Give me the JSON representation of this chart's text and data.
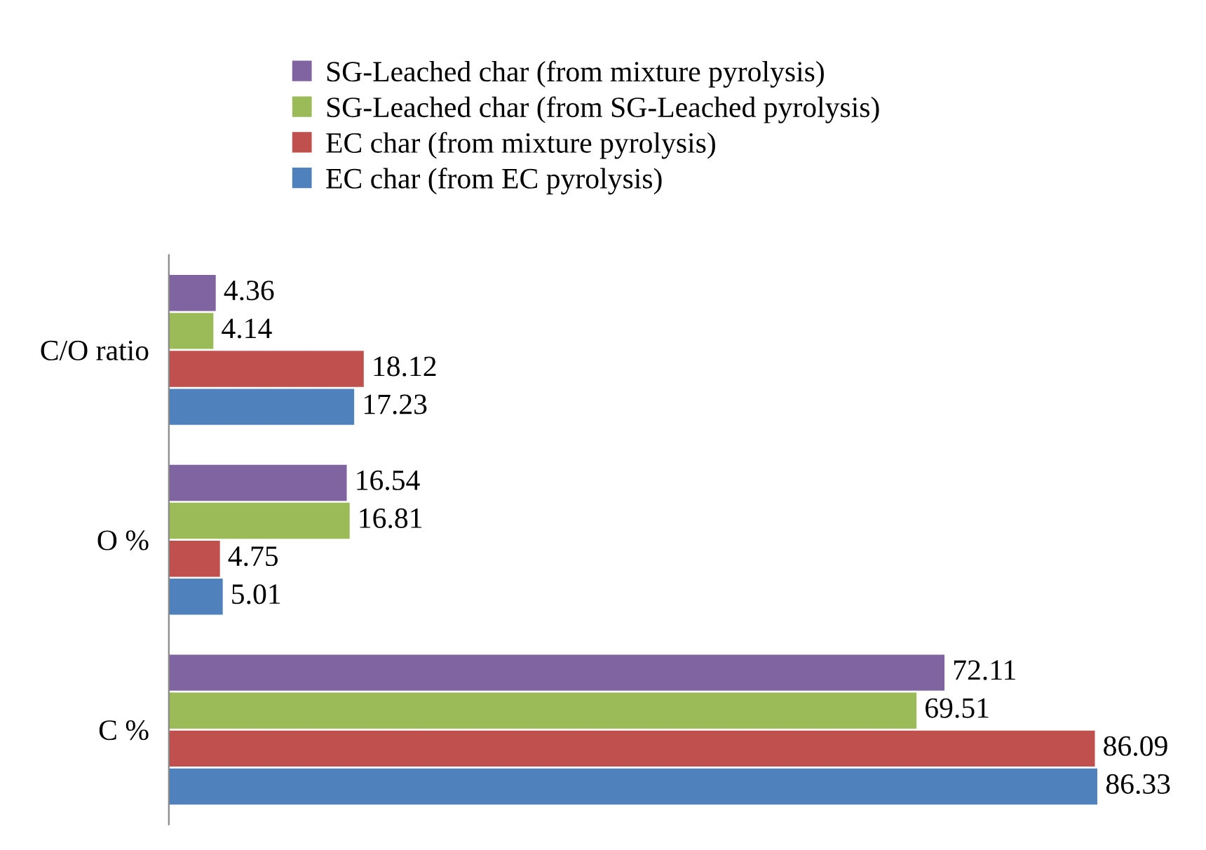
{
  "chart_data": {
    "type": "bar",
    "orientation": "horizontal",
    "categories": [
      "C/O ratio",
      "O %",
      "C %"
    ],
    "series": [
      {
        "name": "SG-Leached char (from mixture pyrolysis)",
        "color": "#8064a2",
        "values": [
          4.36,
          16.54,
          72.11
        ]
      },
      {
        "name": "SG-Leached char (from SG-Leached pyrolysis)",
        "color": "#9bbb59",
        "values": [
          4.14,
          16.81,
          69.51
        ]
      },
      {
        "name": "EC char (from mixture pyrolysis)",
        "color": "#c0504d",
        "values": [
          18.12,
          4.75,
          86.09
        ]
      },
      {
        "name": "EC char (from EC pyrolysis)",
        "color": "#4f81bd",
        "values": [
          17.23,
          5.01,
          86.33
        ]
      }
    ],
    "data_labels": true,
    "legend": "top",
    "grid": false
  }
}
